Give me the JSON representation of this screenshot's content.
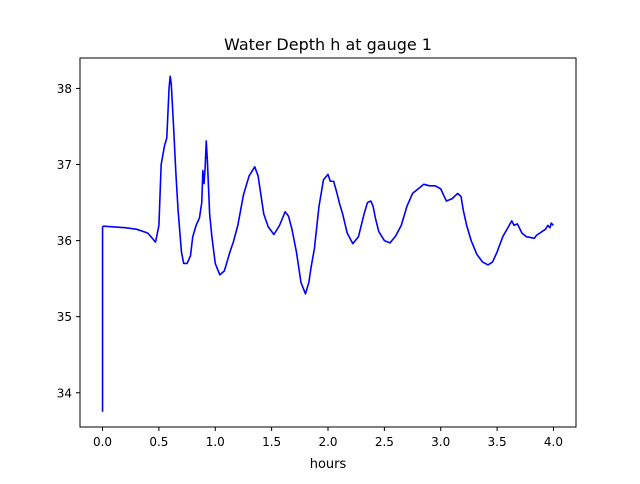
{
  "chart_data": {
    "type": "line",
    "title": "Water Depth h at gauge 1",
    "xlabel": "hours",
    "ylabel": "",
    "xlim": [
      -0.2,
      4.2
    ],
    "ylim": [
      33.55,
      38.4
    ],
    "xticks": [
      0.0,
      0.5,
      1.0,
      1.5,
      2.0,
      2.5,
      3.0,
      3.5,
      4.0
    ],
    "xtick_labels": [
      "0.0",
      "0.5",
      "1.0",
      "1.5",
      "2.0",
      "2.5",
      "3.0",
      "3.5",
      "4.0"
    ],
    "yticks": [
      34,
      35,
      36,
      37,
      38
    ],
    "ytick_labels": [
      "34",
      "35",
      "36",
      "37",
      "38"
    ],
    "grid": false,
    "series": [
      {
        "color": "#0000ff",
        "x": [
          0.0,
          0.0,
          0.01,
          0.1,
          0.2,
          0.3,
          0.4,
          0.43,
          0.47,
          0.5,
          0.52,
          0.55,
          0.57,
          0.59,
          0.6,
          0.61,
          0.63,
          0.65,
          0.67,
          0.7,
          0.72,
          0.75,
          0.78,
          0.8,
          0.83,
          0.86,
          0.88,
          0.89,
          0.9,
          0.91,
          0.92,
          0.93,
          0.94,
          0.95,
          0.97,
          1.0,
          1.04,
          1.08,
          1.1,
          1.13,
          1.16,
          1.2,
          1.25,
          1.3,
          1.35,
          1.38,
          1.4,
          1.43,
          1.47,
          1.52,
          1.57,
          1.62,
          1.65,
          1.68,
          1.72,
          1.76,
          1.8,
          1.83,
          1.85,
          1.88,
          1.92,
          1.96,
          2.0,
          2.02,
          2.05,
          2.08,
          2.1,
          2.13,
          2.17,
          2.22,
          2.27,
          2.32,
          2.35,
          2.38,
          2.4,
          2.42,
          2.45,
          2.5,
          2.55,
          2.6,
          2.65,
          2.7,
          2.75,
          2.8,
          2.85,
          2.9,
          2.95,
          3.0,
          3.05,
          3.1,
          3.15,
          3.18,
          3.2,
          3.23,
          3.27,
          3.32,
          3.37,
          3.42,
          3.46,
          3.5,
          3.55,
          3.6,
          3.63,
          3.65,
          3.68,
          3.72,
          3.76,
          3.8,
          3.83,
          3.85,
          3.9,
          3.93,
          3.95,
          3.97,
          3.98,
          4.0
        ],
        "y": [
          33.75,
          36.18,
          36.19,
          36.18,
          36.17,
          36.15,
          36.1,
          36.05,
          35.98,
          36.2,
          37.0,
          37.25,
          37.35,
          38.0,
          38.16,
          38.05,
          37.5,
          36.9,
          36.4,
          35.85,
          35.7,
          35.7,
          35.8,
          36.05,
          36.2,
          36.3,
          36.5,
          36.92,
          36.75,
          36.95,
          37.31,
          37.05,
          36.7,
          36.35,
          36.05,
          35.7,
          35.55,
          35.6,
          35.7,
          35.85,
          35.98,
          36.2,
          36.6,
          36.85,
          36.97,
          36.85,
          36.65,
          36.35,
          36.18,
          36.08,
          36.2,
          36.38,
          36.32,
          36.15,
          35.85,
          35.45,
          35.3,
          35.45,
          35.65,
          35.9,
          36.45,
          36.8,
          36.87,
          36.78,
          36.78,
          36.62,
          36.5,
          36.35,
          36.1,
          35.96,
          36.05,
          36.35,
          36.5,
          36.52,
          36.45,
          36.3,
          36.12,
          36.0,
          35.97,
          36.06,
          36.2,
          36.45,
          36.62,
          36.68,
          36.74,
          36.72,
          36.72,
          36.68,
          36.52,
          36.55,
          36.62,
          36.58,
          36.4,
          36.2,
          36.0,
          35.82,
          35.72,
          35.68,
          35.72,
          35.85,
          36.05,
          36.18,
          36.26,
          36.2,
          36.22,
          36.1,
          36.05,
          36.04,
          36.03,
          36.07,
          36.12,
          36.15,
          36.2,
          36.17,
          36.23,
          36.2
        ]
      }
    ]
  }
}
